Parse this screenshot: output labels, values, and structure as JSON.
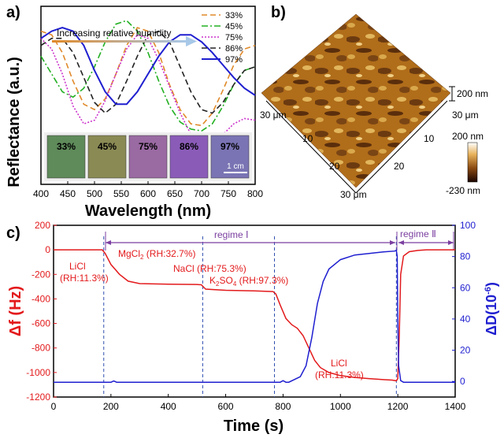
{
  "panels": {
    "a": {
      "letter": "a)",
      "ylabel": "Reflectance (a.u.)",
      "xlabel": "Wavelength (nm)",
      "arrow_text": "Increasing relative humidity",
      "scale_bar": "1 cm",
      "swatches": [
        {
          "label": "33%",
          "color": "#5f8a5a"
        },
        {
          "label": "45%",
          "color": "#8a8a55"
        },
        {
          "label": "75%",
          "color": "#9a6aa2"
        },
        {
          "label": "86%",
          "color": "#8a5cb8"
        },
        {
          "label": "97%",
          "color": "#7a74b4"
        }
      ]
    },
    "b": {
      "letter": "b)",
      "label_z_height": "200 nm",
      "label_left_top": "30 μm",
      "label_right_top": "30 μm",
      "label_bottom": "30 μm",
      "ticks_left": [
        "10",
        "20"
      ],
      "ticks_right": [
        "10",
        "20"
      ],
      "colorbar_max": "200 nm",
      "colorbar_min": "-230 nm"
    },
    "c": {
      "letter": "c)",
      "regime1": "regime Ⅰ",
      "regime2": "regime Ⅱ",
      "ylabel_left": "Δf (Hz)",
      "ylabel_right_prefix": "ΔD(10",
      "ylabel_right_exp": "-6",
      "ylabel_right_suffix": ")",
      "xlabel": "Time (s)",
      "annotations": {
        "licl_start_1": "LiCl",
        "licl_start_2": "(RH:11.3%)",
        "mgcl2_pre": "MgCl",
        "mgcl2_sub": "2",
        "mgcl2_post": " (RH:32.7%)",
        "nacl": "NaCl (RH:75.3%)",
        "k2so4_pre": "K",
        "k2so4_sub1": "2",
        "k2so4_mid": "SO",
        "k2so4_sub2": "4",
        "k2so4_post": " (RH:97.3%)",
        "licl_end_1": "LiCl",
        "licl_end_2": "(RH:11.3%)"
      }
    }
  },
  "colors": {
    "red": "#e31a1c",
    "blue": "#1f1fd0",
    "purple": "#7b3fa0",
    "arrow_orange": "#e08a2a",
    "arrow_blue": "#a8c8e8"
  },
  "chart_data": [
    {
      "type": "line",
      "title": "",
      "xlabel": "Wavelength (nm)",
      "ylabel": "Reflectance (a.u.)",
      "xlim": [
        400,
        800
      ],
      "xticks": [
        "400",
        "450",
        "500",
        "550",
        "600",
        "650",
        "700",
        "750",
        "800"
      ],
      "series": [
        {
          "name": "33%",
          "color": "#e08a2a",
          "style": "dash",
          "x": [
            400,
            420,
            440,
            460,
            480,
            500,
            520,
            540,
            560,
            580,
            600,
            620,
            640,
            660,
            680,
            700,
            720,
            740,
            760,
            780,
            800
          ],
          "y": [
            0.86,
            0.84,
            0.74,
            0.58,
            0.45,
            0.42,
            0.48,
            0.62,
            0.78,
            0.88,
            0.86,
            0.74,
            0.56,
            0.42,
            0.34,
            0.33,
            0.4,
            0.53,
            0.67,
            0.76,
            0.78
          ]
        },
        {
          "name": "45%",
          "color": "#22b022",
          "style": "dashdot",
          "x": [
            400,
            420,
            440,
            460,
            480,
            500,
            520,
            540,
            560,
            580,
            600,
            620,
            640,
            660,
            680,
            700,
            720,
            740,
            760,
            780,
            800
          ],
          "y": [
            0.72,
            0.62,
            0.52,
            0.49,
            0.54,
            0.66,
            0.8,
            0.9,
            0.92,
            0.86,
            0.74,
            0.58,
            0.44,
            0.35,
            0.31,
            0.3,
            0.34,
            0.44,
            0.56,
            0.64,
            0.66
          ]
        },
        {
          "name": "75%",
          "color": "#cc33cc",
          "style": "dot",
          "x": [
            400,
            420,
            440,
            460,
            480,
            500,
            520,
            540,
            560,
            580,
            600,
            620,
            640,
            660,
            680,
            700,
            720,
            740,
            760,
            780,
            800
          ],
          "y": [
            0.82,
            0.76,
            0.62,
            0.44,
            0.34,
            0.36,
            0.47,
            0.62,
            0.76,
            0.84,
            0.82,
            0.7,
            0.55,
            0.4,
            0.28,
            0.22,
            0.23,
            0.28,
            0.34,
            0.37,
            0.36
          ]
        },
        {
          "name": "86%",
          "color": "#222222",
          "style": "dash",
          "x": [
            400,
            420,
            440,
            460,
            480,
            500,
            520,
            540,
            560,
            580,
            600,
            620,
            640,
            660,
            680,
            700,
            720,
            740,
            760,
            780,
            800
          ],
          "y": [
            0.78,
            0.82,
            0.82,
            0.74,
            0.6,
            0.46,
            0.4,
            0.45,
            0.58,
            0.72,
            0.84,
            0.86,
            0.8,
            0.66,
            0.52,
            0.42,
            0.4,
            0.46,
            0.56,
            0.64,
            0.66
          ]
        },
        {
          "name": "97%",
          "color": "#1f1fd0",
          "style": "solid",
          "x": [
            400,
            420,
            440,
            460,
            480,
            500,
            520,
            540,
            560,
            580,
            600,
            620,
            640,
            660,
            680,
            700,
            720,
            740,
            760,
            780,
            800
          ],
          "y": [
            0.82,
            0.86,
            0.88,
            0.86,
            0.78,
            0.64,
            0.52,
            0.45,
            0.45,
            0.52,
            0.62,
            0.72,
            0.8,
            0.84,
            0.84,
            0.8,
            0.74,
            0.67,
            0.6,
            0.54,
            0.5
          ]
        }
      ]
    },
    {
      "type": "line",
      "title": "",
      "xlabel": "Time (s)",
      "ylabel": "Δf (Hz)",
      "ylabel_right": "ΔD(10-6)",
      "xlim": [
        0,
        1400
      ],
      "ylim": [
        -1200,
        200
      ],
      "ylim_right": [
        -10,
        100
      ],
      "xticks": [
        "0",
        "200",
        "400",
        "600",
        "800",
        "1000",
        "1200",
        "1400"
      ],
      "yticks_left": [
        "200",
        "0",
        "-200",
        "-400",
        "-600",
        "-800",
        "-1000",
        "-1200"
      ],
      "yticks_right": [
        "100",
        "80",
        "60",
        "40",
        "20",
        "0"
      ],
      "series": [
        {
          "name": "Δf",
          "axis": "left",
          "color": "#e31a1c",
          "x": [
            0,
            100,
            170,
            180,
            200,
            230,
            260,
            300,
            400,
            500,
            515,
            530,
            600,
            700,
            765,
            775,
            790,
            810,
            830,
            850,
            870,
            890,
            910,
            930,
            960,
            1000,
            1050,
            1100,
            1150,
            1180,
            1195,
            1200,
            1205,
            1210,
            1220,
            1240,
            1270,
            1300,
            1400
          ],
          "y": [
            0,
            0,
            0,
            -30,
            -120,
            -200,
            -255,
            -275,
            -280,
            -282,
            -285,
            -320,
            -330,
            -335,
            -340,
            -360,
            -450,
            -560,
            -610,
            -640,
            -700,
            -800,
            -900,
            -960,
            -1000,
            -1025,
            -1040,
            -1050,
            -1058,
            -1062,
            -1068,
            -1050,
            -700,
            -200,
            -50,
            -15,
            -5,
            0,
            0
          ]
        },
        {
          "name": "ΔD",
          "axis": "right",
          "color": "#1f1fd0",
          "x": [
            0,
            150,
            200,
            210,
            220,
            300,
            400,
            500,
            600,
            700,
            790,
            800,
            810,
            820,
            860,
            880,
            900,
            920,
            940,
            960,
            1000,
            1050,
            1100,
            1150,
            1190,
            1195,
            1198,
            1200,
            1203,
            1210,
            1220,
            1250,
            1300,
            1400
          ],
          "y": [
            -0.5,
            -0.5,
            -0.5,
            0.3,
            -0.5,
            -0.5,
            -0.5,
            -0.5,
            -0.5,
            -0.5,
            -0.5,
            0.5,
            -0.5,
            -0.5,
            3,
            10,
            28,
            50,
            64,
            72,
            78,
            81,
            82,
            83,
            83.5,
            84,
            80,
            40,
            10,
            0.5,
            -0.5,
            -0.5,
            -0.5,
            -0.5
          ]
        }
      ],
      "vertical_markers_s": [
        175,
        520,
        770,
        1195
      ]
    }
  ]
}
